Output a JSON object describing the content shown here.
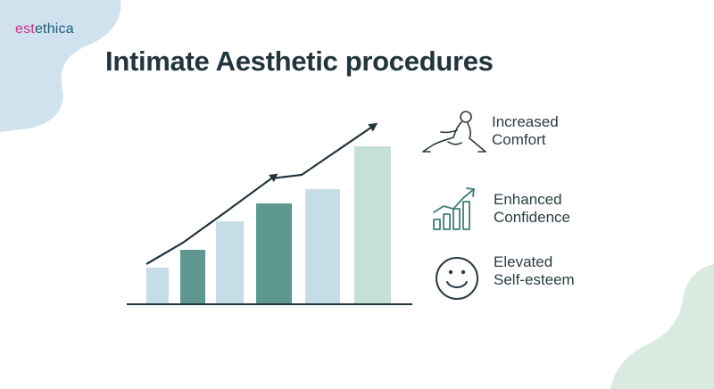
{
  "brand": {
    "part1": "est",
    "part2": "ethica"
  },
  "heading": {
    "title": "Intimate Aesthetic procedures"
  },
  "benefits": [
    {
      "icon": "relaxing-person-icon",
      "line1": "Increased",
      "line2": "Comfort"
    },
    {
      "icon": "growth-bars-icon",
      "line1": "Enhanced",
      "line2": "Confidence"
    },
    {
      "icon": "smiley-face-icon",
      "line1": "Elevated",
      "line2": "Self-esteem"
    }
  ],
  "colors": {
    "brand_pink": "#d12e8a",
    "brand_teal": "#1c5d78",
    "bar_light_blue": "#c6dde8",
    "bar_teal": "#5f9891",
    "bar_mint": "#c6e0d5",
    "blob_blue": "#cfe2ee",
    "blob_mint": "#d9ebe1"
  },
  "chart_data": {
    "type": "bar",
    "categories": [
      "",
      "",
      "",
      "",
      "",
      ""
    ],
    "values": [
      1.0,
      1.5,
      2.3,
      2.8,
      3.2,
      4.4
    ],
    "trend": [
      1.1,
      1.7,
      2.6,
      3.5,
      3.6,
      5.0
    ],
    "title": "",
    "xlabel": "",
    "ylabel": "",
    "ylim": [
      0,
      5.4
    ],
    "grid": false
  }
}
